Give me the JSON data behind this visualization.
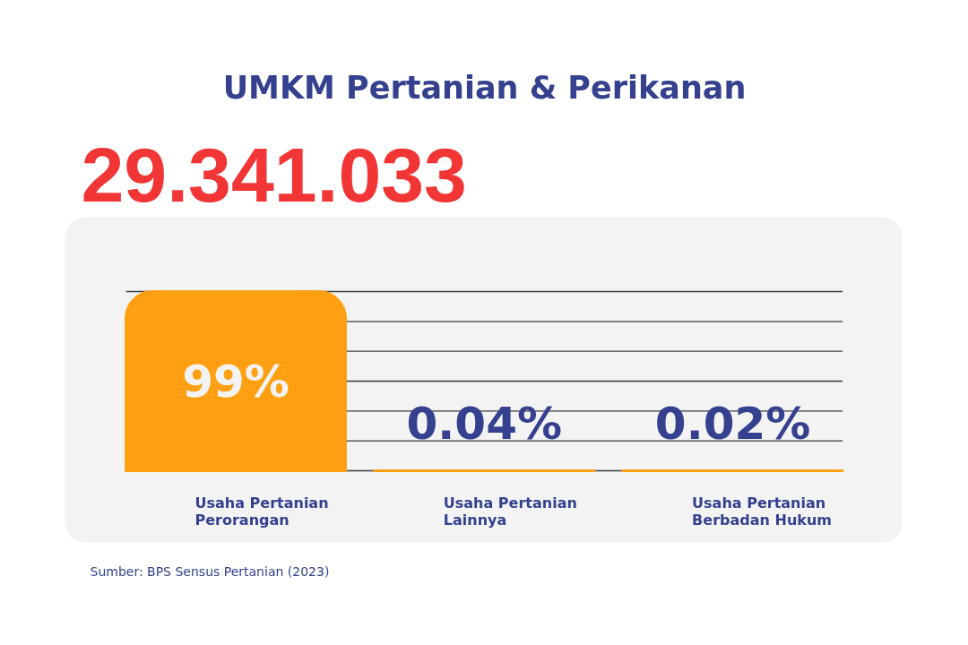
{
  "chart_data": {
    "type": "bar",
    "title": "UMKM Pertanian & Perikanan",
    "subtitle": "29.341.033",
    "categories": [
      "Usaha Pertanian Perorangan",
      "Usaha Pertanian Lainnya",
      "Usaha Pertanian Berbadan Hukum"
    ],
    "values": [
      99,
      0.04,
      0.02
    ],
    "value_labels": [
      "99%",
      "0.04%",
      "0.02%"
    ],
    "color": "#ffa012",
    "ylim": [
      0,
      99
    ],
    "yticks": [
      {
        "value": 0,
        "label": null
      },
      {
        "value": 16.5,
        "label": null
      },
      {
        "value": 33,
        "label": null
      },
      {
        "value": 49.5,
        "label": null
      },
      {
        "value": 66,
        "label": null
      },
      {
        "value": 82.5,
        "label": null
      },
      {
        "value": 99,
        "label": null
      }
    ],
    "grid": "y",
    "tick_labels": "x",
    "annotations": [
      "Sumber: BPS Sensus Pertanian (2023)"
    ]
  }
}
